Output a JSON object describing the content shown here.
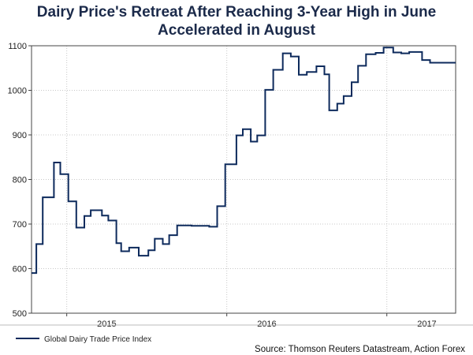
{
  "chart_data": {
    "type": "line",
    "title_lines": [
      "Dairy Price's Retreat After Reaching 3-Year High in June",
      "Accelerated in August"
    ],
    "xlabel": "",
    "ylabel": "",
    "ylim": [
      500,
      1100
    ],
    "yticks": [
      500,
      600,
      700,
      800,
      900,
      1000,
      1100
    ],
    "xlim": [
      2014.78,
      2017.43
    ],
    "xtick_labels": [
      {
        "label": "2015",
        "x": 2015.25
      },
      {
        "label": "2016",
        "x": 2016.25
      },
      {
        "label": "2017",
        "x": 2017.25
      }
    ],
    "year_gridlines": [
      2015.0,
      2016.0,
      2017.0
    ],
    "step": true,
    "series": [
      {
        "name": "Global Dairy Trade Price Index",
        "color": "#0d2a5c",
        "points": [
          [
            2014.78,
            590
          ],
          [
            2014.81,
            655
          ],
          [
            2014.85,
            760
          ],
          [
            2014.92,
            838
          ],
          [
            2014.96,
            812
          ],
          [
            2015.01,
            751
          ],
          [
            2015.06,
            692
          ],
          [
            2015.11,
            718
          ],
          [
            2015.15,
            731
          ],
          [
            2015.22,
            719
          ],
          [
            2015.26,
            708
          ],
          [
            2015.31,
            657
          ],
          [
            2015.34,
            639
          ],
          [
            2015.39,
            647
          ],
          [
            2015.45,
            629
          ],
          [
            2015.51,
            641
          ],
          [
            2015.55,
            667
          ],
          [
            2015.6,
            655
          ],
          [
            2015.64,
            675
          ],
          [
            2015.69,
            697
          ],
          [
            2015.78,
            696
          ],
          [
            2015.89,
            694
          ],
          [
            2015.94,
            740
          ],
          [
            2015.99,
            834
          ],
          [
            2016.06,
            899
          ],
          [
            2016.1,
            913
          ],
          [
            2016.15,
            885
          ],
          [
            2016.19,
            899
          ],
          [
            2016.24,
            1001
          ],
          [
            2016.29,
            1046
          ],
          [
            2016.35,
            1083
          ],
          [
            2016.4,
            1076
          ],
          [
            2016.45,
            1035
          ],
          [
            2016.5,
            1041
          ],
          [
            2016.56,
            1054
          ],
          [
            2016.61,
            1036
          ],
          [
            2016.64,
            955
          ],
          [
            2016.69,
            970
          ],
          [
            2016.73,
            987
          ],
          [
            2016.78,
            1018
          ],
          [
            2016.82,
            1055
          ],
          [
            2016.87,
            1081
          ],
          [
            2016.93,
            1084
          ],
          [
            2016.98,
            1096
          ],
          [
            2017.04,
            1085
          ],
          [
            2017.09,
            1083
          ],
          [
            2017.14,
            1086
          ],
          [
            2017.22,
            1068
          ],
          [
            2017.27,
            1062
          ],
          [
            2017.3,
            1062
          ]
        ]
      }
    ],
    "legend": {
      "placement": "bottom-left",
      "entries": [
        "Global Dairy Trade Price Index"
      ]
    },
    "source": "Source: Thomson Reuters Datastream, Action Forex"
  }
}
